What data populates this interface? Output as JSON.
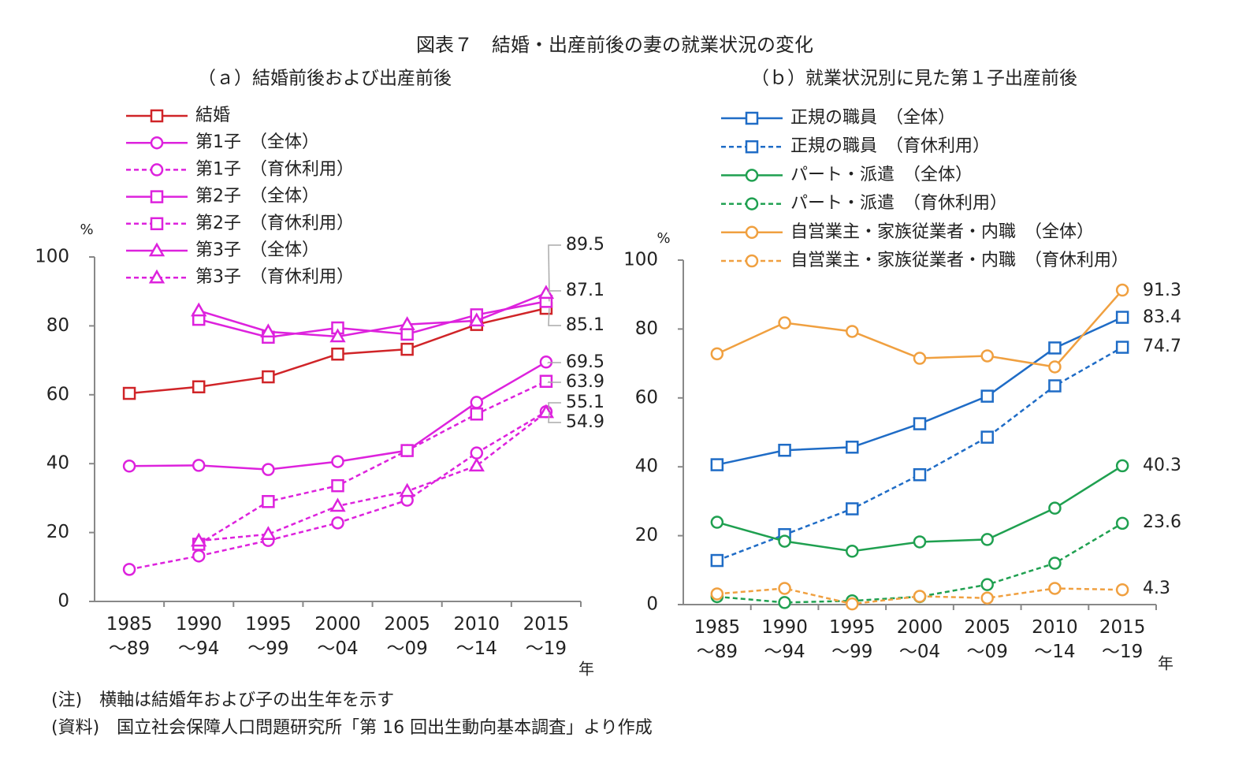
{
  "title": "図表７　結婚・出産前後の妻の就業状況の変化",
  "chart_data": [
    {
      "type": "line",
      "subtitle": "（ａ）結婚前後および出産前後",
      "y_unit": "%",
      "x_unit": "年",
      "categories": [
        "1985\n～89",
        "1990\n～94",
        "1995\n～99",
        "2000\n～04",
        "2005\n～09",
        "2010\n～14",
        "2015\n～19"
      ],
      "ylim": [
        0,
        100
      ],
      "yticks": [
        0,
        20,
        40,
        60,
        80,
        100
      ],
      "series": [
        {
          "name": "結婚",
          "color": "#d02428",
          "marker": "square",
          "dashed": false,
          "values": [
            60.4,
            62.3,
            65.2,
            71.8,
            73.2,
            80.4,
            85.1
          ]
        },
        {
          "name": "第1子　（全体）",
          "color": "#dd22dd",
          "marker": "circle",
          "dashed": false,
          "values": [
            39.3,
            39.5,
            38.3,
            40.6,
            43.8,
            57.8,
            69.5
          ]
        },
        {
          "name": "第1子　（育休利用）",
          "color": "#dd22dd",
          "marker": "circle",
          "dashed": true,
          "values": [
            9.3,
            13.2,
            17.7,
            22.8,
            29.4,
            43.1,
            55.1
          ]
        },
        {
          "name": "第2子　（全体）",
          "color": "#dd22dd",
          "marker": "square",
          "dashed": false,
          "values": [
            null,
            81.9,
            76.7,
            79.4,
            77.6,
            83.2,
            87.1
          ]
        },
        {
          "name": "第2子　（育休利用）",
          "color": "#dd22dd",
          "marker": "square",
          "dashed": true,
          "values": [
            null,
            16.6,
            29.0,
            33.6,
            43.8,
            54.4,
            63.9
          ]
        },
        {
          "name": "第3子　（全体）",
          "color": "#dd22dd",
          "marker": "triangle",
          "dashed": false,
          "values": [
            null,
            84.4,
            78.3,
            76.9,
            80.4,
            81.5,
            89.5
          ]
        },
        {
          "name": "第3子　（育休利用）",
          "color": "#dd22dd",
          "marker": "triangle",
          "dashed": true,
          "values": [
            null,
            17.6,
            19.5,
            27.7,
            32.0,
            39.4,
            54.9
          ]
        }
      ]
    },
    {
      "type": "line",
      "subtitle": "（ｂ）就業状況別に見た第１子出産前後",
      "y_unit": "%",
      "x_unit": "年",
      "categories": [
        "1985\n～89",
        "1990\n～94",
        "1995\n～99",
        "2000\n～04",
        "2005\n～09",
        "2010\n～14",
        "2015\n～19"
      ],
      "ylim": [
        0,
        100
      ],
      "yticks": [
        0,
        20,
        40,
        60,
        80,
        100
      ],
      "series": [
        {
          "name": "正規の職員　（全体）",
          "color": "#1f6cc6",
          "marker": "square",
          "dashed": false,
          "values": [
            40.6,
            44.8,
            45.7,
            52.5,
            60.5,
            74.5,
            83.4
          ]
        },
        {
          "name": "正規の職員　（育休利用）",
          "color": "#1f6cc6",
          "marker": "square",
          "dashed": true,
          "values": [
            12.8,
            20.3,
            27.8,
            37.7,
            48.6,
            63.5,
            74.7
          ]
        },
        {
          "name": "パート・派遣　（全体）",
          "color": "#1fa050",
          "marker": "circle",
          "dashed": false,
          "values": [
            23.9,
            18.4,
            15.5,
            18.2,
            18.9,
            28.0,
            40.3
          ]
        },
        {
          "name": "パート・派遣　（育休利用）",
          "color": "#1fa050",
          "marker": "circle",
          "dashed": true,
          "values": [
            2.3,
            0.6,
            1.1,
            2.3,
            5.8,
            12.0,
            23.6
          ]
        },
        {
          "name": "自営業主・家族従業者・内職　（全体）",
          "color": "#f0a040",
          "marker": "circle",
          "dashed": false,
          "values": [
            72.8,
            81.8,
            79.3,
            71.5,
            72.2,
            69.0,
            91.3
          ]
        },
        {
          "name": "自営業主・家族従業者・内職　（育休利用）",
          "color": "#f0a040",
          "marker": "circle",
          "dashed": true,
          "values": [
            3.1,
            4.7,
            0.2,
            2.4,
            1.9,
            4.7,
            4.3
          ]
        }
      ]
    }
  ],
  "notes": [
    "(注)　横軸は結婚年および子の出生年を示す",
    "(資料)　国立社会保障人口問題研究所「第 16 回出生動向基本調査」より作成"
  ]
}
